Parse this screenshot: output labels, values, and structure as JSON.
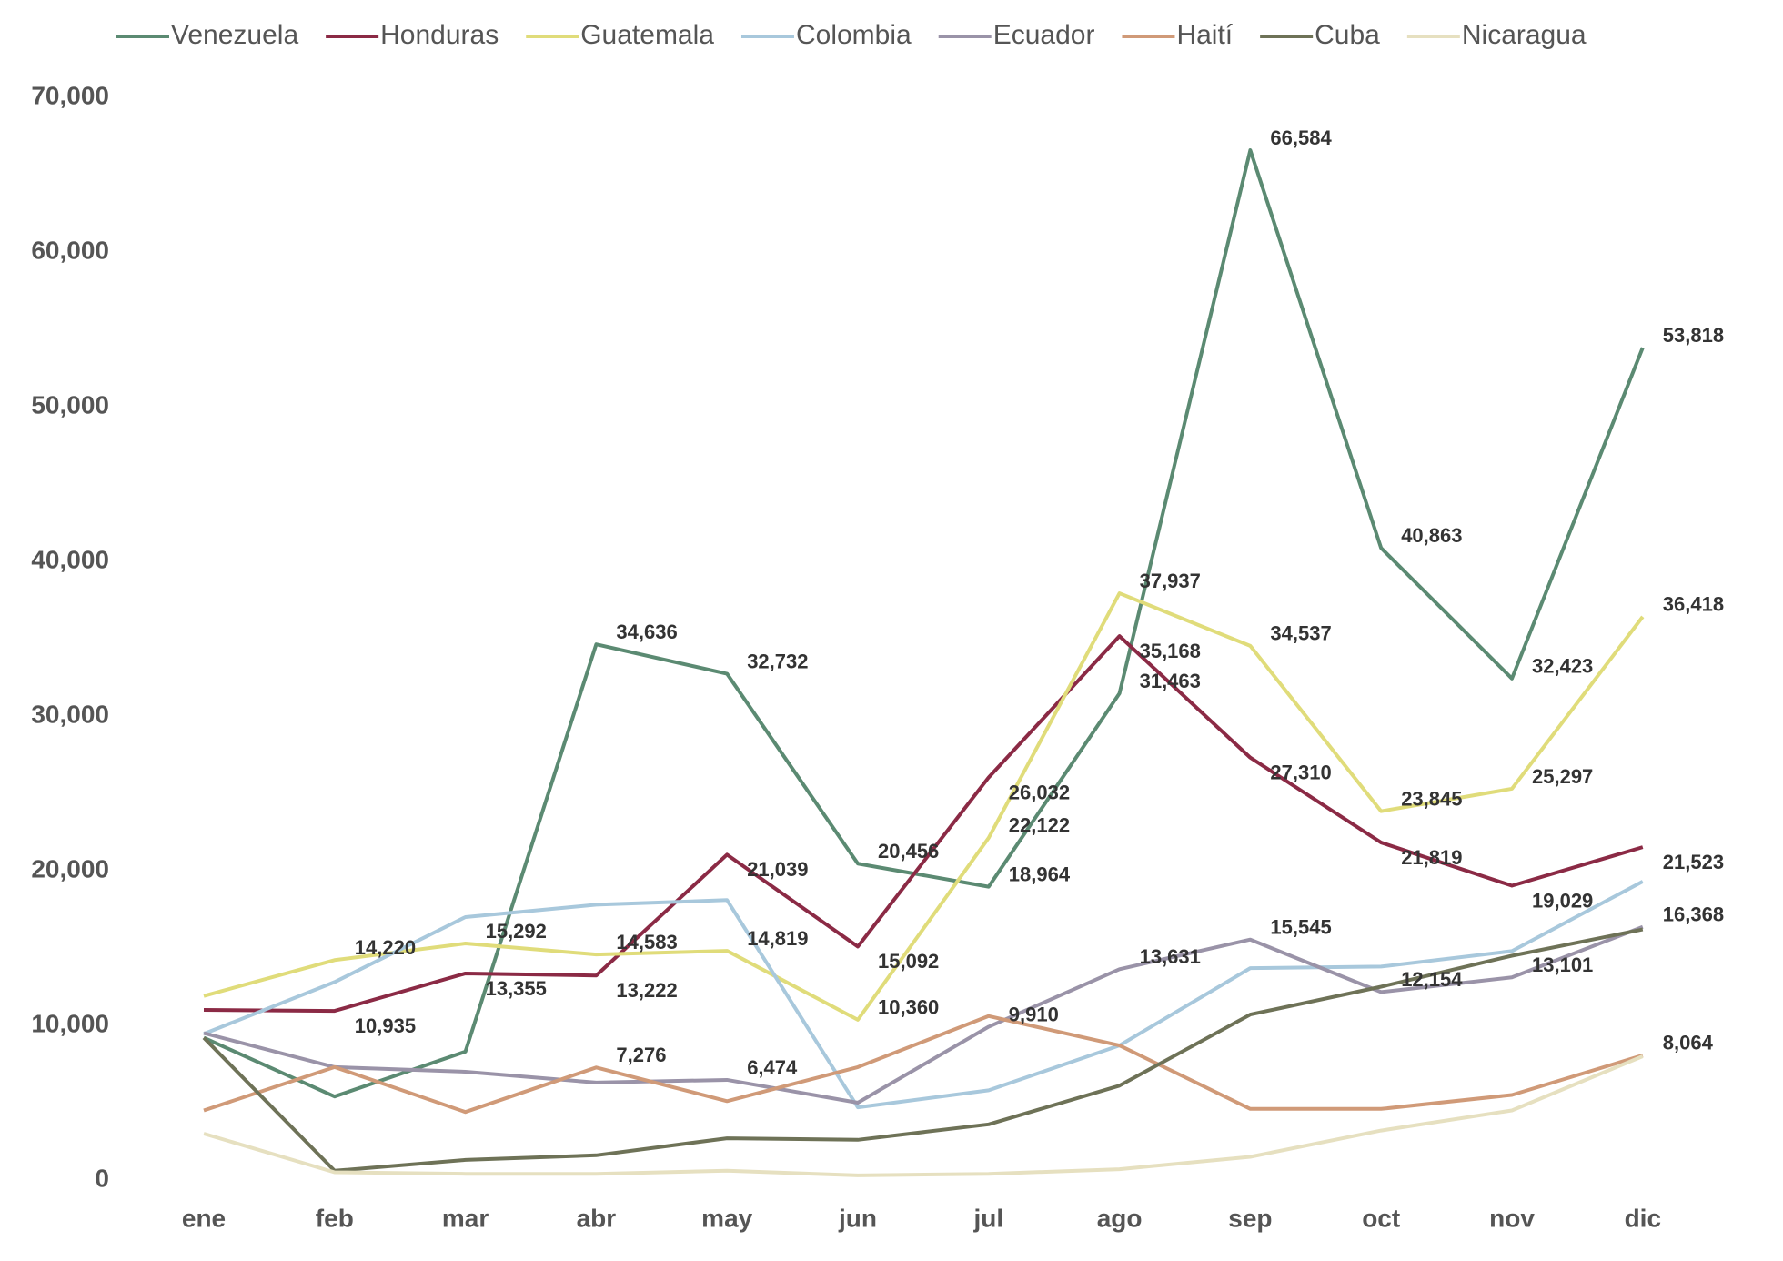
{
  "chart_data": {
    "type": "line",
    "categories": [
      "ene",
      "feb",
      "mar",
      "abr",
      "may",
      "jun",
      "jul",
      "ago",
      "sep",
      "oct",
      "nov",
      "dic"
    ],
    "ylim": [
      0,
      70000
    ],
    "yticks": [
      0,
      {
        "value": 10000,
        "label": "10,000"
      },
      {
        "value": 20000,
        "label": "20,000"
      },
      {
        "value": 30000,
        "label": "30,000"
      },
      {
        "value": 40000,
        "label": "40,000"
      },
      {
        "value": 50000,
        "label": "50,000"
      },
      {
        "value": 60000,
        "label": "60,000"
      },
      {
        "value": 70000,
        "label": "70,000"
      }
    ],
    "grid": false,
    "series": [
      {
        "name": "Venezuela",
        "color": "#5b8a72",
        "values": [
          9200,
          5400,
          8300,
          34636,
          32732,
          20456,
          18964,
          31463,
          66584,
          40863,
          32423,
          53818
        ],
        "value_labels": [
          null,
          null,
          null,
          "34,636",
          "32,732",
          "20,456",
          "18,964",
          "31,463",
          "66,584",
          "40,863",
          "32,423",
          "53,818"
        ]
      },
      {
        "name": "Honduras",
        "color": "#8b2a45",
        "values": [
          11000,
          10935,
          13355,
          13222,
          21039,
          15092,
          26032,
          35168,
          27310,
          21819,
          19029,
          21523
        ],
        "value_labels": [
          null,
          "10,935",
          "13,355",
          "13,222",
          "21,039",
          "15,092",
          "26,032",
          "35,168",
          "27,310",
          "21,819",
          "19,029",
          "21,523"
        ]
      },
      {
        "name": "Guatemala",
        "color": "#e0dc7a",
        "values": [
          11900,
          14220,
          15292,
          14583,
          14819,
          10360,
          22122,
          37937,
          34537,
          23845,
          25297,
          36418
        ],
        "value_labels": [
          null,
          "14,220",
          "15,292",
          "14,583",
          "14,819",
          "10,360",
          "22,122",
          "37,937",
          "34,537",
          "23,845",
          "25,297",
          "36,418"
        ]
      },
      {
        "name": "Colombia",
        "color": "#a8c8dc",
        "values": [
          9450,
          12800,
          17000,
          17800,
          18100,
          4700,
          5800,
          8700,
          13700,
          13800,
          14800,
          19300
        ]
      },
      {
        "name": "Ecuador",
        "color": "#9a93a8",
        "values": [
          9500,
          7300,
          7000,
          6300,
          6474,
          5000,
          9910,
          13631,
          15545,
          12154,
          13101,
          16368
        ],
        "value_labels": [
          null,
          null,
          null,
          null,
          "6,474",
          null,
          "9,910",
          "13,631",
          "15,545",
          "12,154",
          "13,101",
          "16,368"
        ]
      },
      {
        "name": "Haití",
        "color": "#d09a78",
        "values": [
          4500,
          7300,
          4400,
          7276,
          5100,
          7300,
          10600,
          8700,
          4600,
          4600,
          5500,
          8064
        ],
        "value_labels": [
          null,
          null,
          null,
          "7,276",
          null,
          null,
          null,
          null,
          null,
          null,
          null,
          "8,064"
        ]
      },
      {
        "name": "Cuba",
        "color": "#6e7257",
        "values": [
          9200,
          600,
          1300,
          1600,
          2700,
          2600,
          3600,
          6100,
          10700,
          12500,
          14500,
          16200
        ]
      },
      {
        "name": "Nicaragua",
        "color": "#e6e0c0",
        "values": [
          3000,
          500,
          400,
          400,
          600,
          300,
          400,
          700,
          1500,
          3200,
          4500,
          8000
        ]
      }
    ]
  }
}
